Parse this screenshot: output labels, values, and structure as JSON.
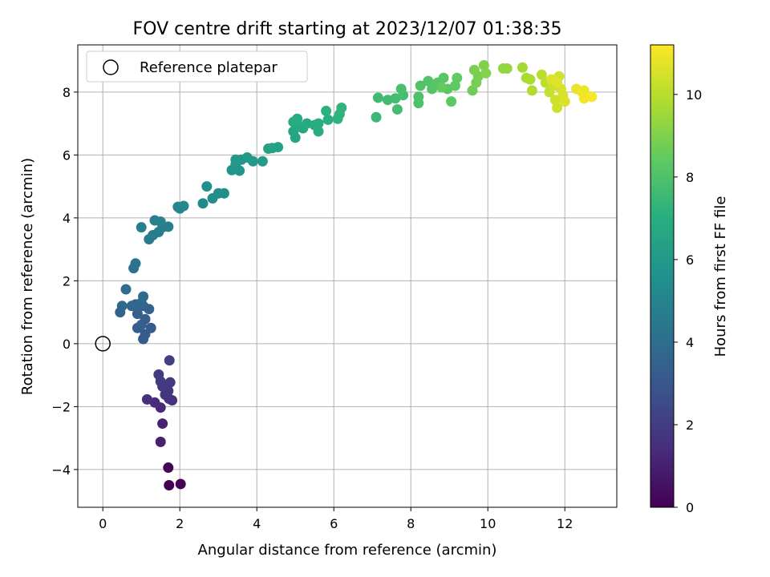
{
  "chart_data": {
    "type": "scatter",
    "title": "FOV centre drift starting at 2023/12/07 01:38:35",
    "xlabel": "Angular distance from reference (arcmin)",
    "ylabel": "Rotation from reference (arcmin)",
    "xlim": [
      -0.65,
      13.35
    ],
    "ylim": [
      -5.2,
      9.5
    ],
    "xticks": [
      0,
      2,
      4,
      6,
      8,
      10,
      12
    ],
    "yticks": [
      -4,
      -2,
      0,
      2,
      4,
      6,
      8
    ],
    "grid": true,
    "legend": {
      "position": "top-left",
      "entries": [
        "Reference platepar"
      ]
    },
    "reference_point": {
      "x": 0,
      "y": 0
    },
    "colorbar": {
      "label": "Hours from first FF file",
      "min": 0,
      "max": 11.2,
      "ticks": [
        0,
        2,
        4,
        6,
        8,
        10
      ],
      "colormap": "viridis"
    },
    "points": [
      [
        1.72,
        -4.5,
        0.0
      ],
      [
        2.02,
        -4.46,
        0.05
      ],
      [
        1.7,
        -3.94,
        0.12
      ],
      [
        1.5,
        -3.12,
        1.0
      ],
      [
        1.55,
        -2.54,
        1.1
      ],
      [
        1.5,
        -2.03,
        1.3
      ],
      [
        1.35,
        -1.87,
        1.4
      ],
      [
        1.15,
        -1.77,
        1.5
      ],
      [
        1.8,
        -1.8,
        1.6
      ],
      [
        1.72,
        -1.75,
        1.65
      ],
      [
        1.62,
        -1.62,
        1.7
      ],
      [
        1.7,
        -1.5,
        1.75
      ],
      [
        1.55,
        -1.36,
        1.8
      ],
      [
        1.75,
        -1.23,
        1.85
      ],
      [
        1.5,
        -1.2,
        1.9
      ],
      [
        1.45,
        -0.98,
        1.95
      ],
      [
        1.73,
        -0.53,
        2.1
      ],
      [
        1.05,
        0.15,
        3.1
      ],
      [
        1.25,
        0.5,
        3.2
      ],
      [
        1.1,
        0.3,
        3.25
      ],
      [
        0.9,
        0.5,
        3.3
      ],
      [
        1.0,
        0.6,
        3.35
      ],
      [
        1.1,
        0.78,
        3.4
      ],
      [
        0.9,
        0.95,
        3.45
      ],
      [
        1.2,
        1.1,
        3.5
      ],
      [
        1.05,
        1.2,
        3.55
      ],
      [
        0.85,
        1.25,
        3.6
      ],
      [
        0.45,
        1.0,
        3.65
      ],
      [
        0.5,
        1.2,
        3.7
      ],
      [
        0.75,
        1.2,
        3.75
      ],
      [
        1.0,
        1.3,
        3.8
      ],
      [
        1.05,
        1.5,
        3.9
      ],
      [
        0.6,
        1.73,
        3.95
      ],
      [
        0.8,
        2.4,
        4.2
      ],
      [
        0.85,
        2.55,
        4.3
      ],
      [
        1.2,
        3.32,
        4.6
      ],
      [
        1.3,
        3.45,
        4.65
      ],
      [
        1.45,
        3.55,
        4.7
      ],
      [
        1.55,
        3.7,
        4.75
      ],
      [
        1.0,
        3.7,
        4.8
      ],
      [
        1.7,
        3.72,
        4.8
      ],
      [
        1.35,
        3.92,
        4.85
      ],
      [
        1.5,
        3.88,
        4.9
      ],
      [
        2.0,
        4.3,
        5.1
      ],
      [
        1.95,
        4.35,
        5.15
      ],
      [
        2.1,
        4.38,
        5.2
      ],
      [
        2.6,
        4.46,
        5.3
      ],
      [
        2.85,
        4.62,
        5.4
      ],
      [
        3.0,
        4.78,
        5.45
      ],
      [
        3.15,
        4.78,
        5.5
      ],
      [
        2.7,
        5.0,
        5.6
      ],
      [
        3.35,
        5.52,
        5.8
      ],
      [
        3.55,
        5.5,
        5.85
      ],
      [
        3.45,
        5.7,
        5.9
      ],
      [
        3.6,
        5.85,
        5.95
      ],
      [
        3.45,
        5.85,
        6.0
      ],
      [
        3.75,
        5.92,
        6.05
      ],
      [
        3.9,
        5.8,
        6.1
      ],
      [
        4.15,
        5.8,
        6.15
      ],
      [
        4.3,
        6.2,
        6.3
      ],
      [
        4.55,
        6.25,
        6.35
      ],
      [
        4.4,
        6.22,
        6.4
      ],
      [
        5.0,
        6.55,
        6.55
      ],
      [
        4.95,
        6.75,
        6.6
      ],
      [
        5.2,
        6.85,
        6.65
      ],
      [
        5.1,
        6.9,
        6.7
      ],
      [
        5.3,
        7.0,
        6.75
      ],
      [
        4.95,
        7.05,
        6.8
      ],
      [
        5.05,
        7.15,
        6.85
      ],
      [
        5.5,
        6.95,
        6.9
      ],
      [
        5.6,
        6.75,
        6.9
      ],
      [
        5.6,
        7.0,
        6.95
      ],
      [
        5.85,
        7.12,
        7.0
      ],
      [
        5.8,
        7.4,
        7.1
      ],
      [
        6.1,
        7.15,
        7.15
      ],
      [
        6.15,
        7.3,
        7.2
      ],
      [
        6.2,
        7.5,
        7.25
      ],
      [
        7.1,
        7.2,
        7.5
      ],
      [
        7.15,
        7.82,
        7.6
      ],
      [
        7.4,
        7.75,
        7.65
      ],
      [
        7.6,
        7.8,
        7.7
      ],
      [
        7.65,
        7.45,
        7.75
      ],
      [
        7.8,
        7.9,
        7.8
      ],
      [
        7.75,
        8.1,
        7.85
      ],
      [
        8.2,
        7.65,
        7.95
      ],
      [
        8.2,
        7.85,
        8.0
      ],
      [
        8.25,
        8.2,
        8.05
      ],
      [
        8.45,
        8.35,
        8.1
      ],
      [
        8.55,
        8.1,
        8.15
      ],
      [
        8.7,
        8.3,
        8.2
      ],
      [
        8.85,
        8.45,
        8.25
      ],
      [
        8.95,
        8.1,
        8.3
      ],
      [
        9.05,
        7.7,
        8.35
      ],
      [
        9.15,
        8.2,
        8.4
      ],
      [
        9.2,
        8.45,
        8.45
      ],
      [
        8.8,
        8.15,
        8.5
      ],
      [
        9.6,
        8.05,
        8.7
      ],
      [
        9.7,
        8.3,
        8.8
      ],
      [
        9.75,
        8.5,
        8.85
      ],
      [
        9.65,
        8.7,
        8.9
      ],
      [
        9.9,
        8.85,
        9.0
      ],
      [
        9.95,
        8.6,
        9.05
      ],
      [
        10.4,
        8.75,
        9.3
      ],
      [
        10.5,
        8.75,
        9.35
      ],
      [
        10.9,
        8.78,
        9.6
      ],
      [
        11.0,
        8.45,
        9.7
      ],
      [
        11.1,
        8.4,
        9.8
      ],
      [
        11.15,
        8.05,
        9.85
      ],
      [
        11.4,
        8.55,
        10.0
      ],
      [
        11.5,
        8.3,
        10.1
      ],
      [
        11.6,
        8.0,
        10.2
      ],
      [
        11.7,
        8.2,
        10.3
      ],
      [
        11.75,
        7.75,
        10.35
      ],
      [
        11.8,
        7.5,
        10.4
      ],
      [
        11.85,
        8.5,
        10.45
      ],
      [
        11.9,
        8.1,
        10.5
      ],
      [
        11.95,
        7.9,
        10.55
      ],
      [
        12.0,
        7.7,
        10.6
      ],
      [
        11.65,
        8.4,
        10.65
      ],
      [
        11.8,
        8.3,
        10.7
      ],
      [
        12.3,
        8.1,
        10.85
      ],
      [
        12.45,
        8.0,
        10.9
      ],
      [
        12.5,
        8.05,
        10.95
      ],
      [
        12.5,
        7.8,
        11.0
      ],
      [
        12.7,
        7.85,
        11.1
      ]
    ]
  }
}
